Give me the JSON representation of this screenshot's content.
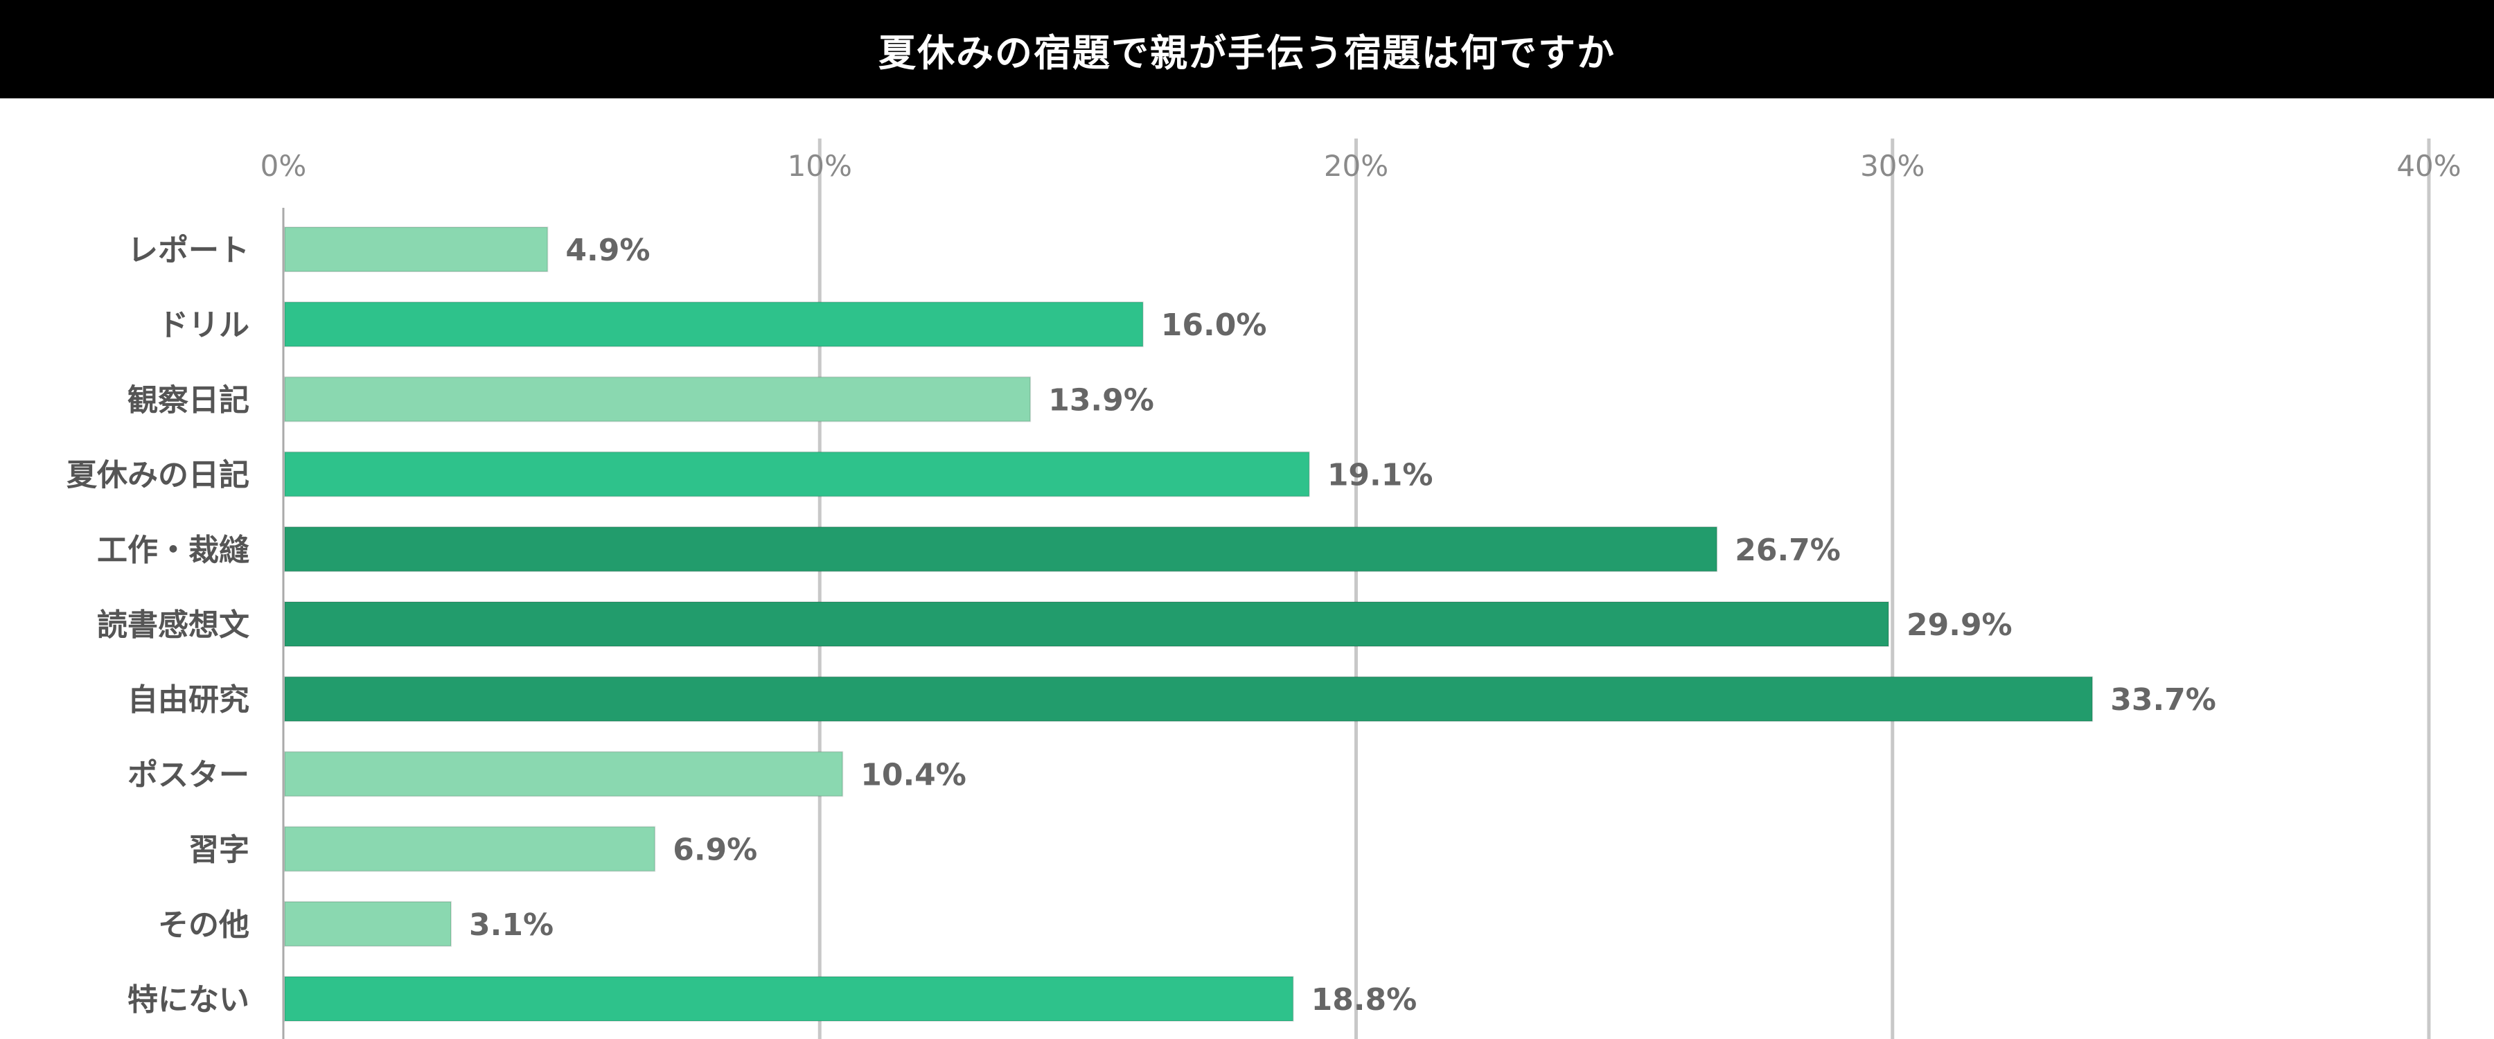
{
  "title": "夏休みの宿題で親が手伝う宿題は何ですか",
  "chart_data": {
    "type": "bar",
    "orientation": "horizontal",
    "title": "夏休みの宿題で親が手伝う宿題は何ですか",
    "xlabel": "",
    "ylabel": "",
    "xlim": [
      0,
      40
    ],
    "x_ticks": [
      "0%",
      "10%",
      "20%",
      "30%",
      "40%"
    ],
    "grid": true,
    "categories": [
      "レポート",
      "ドリル",
      "観察日記",
      "夏休みの日記",
      "工作・裁縫",
      "読書感想文",
      "自由研究",
      "ポスター",
      "習字",
      "その他",
      "特にない"
    ],
    "values": [
      4.9,
      16.0,
      13.9,
      19.1,
      26.7,
      29.9,
      33.7,
      10.4,
      6.9,
      3.1,
      18.8
    ],
    "data_labels": [
      "4.9%",
      "16.0%",
      "13.9%",
      "19.1%",
      "26.7%",
      "29.9%",
      "33.7%",
      "10.4%",
      "6.9%",
      "3.1%",
      "18.8%"
    ],
    "bar_colors": [
      "#8ad8b0",
      "#2ec28b",
      "#8ad8b0",
      "#2ec28b",
      "#229c6c",
      "#229c6c",
      "#229c6c",
      "#8ad8b0",
      "#8ad8b0",
      "#8ad8b0",
      "#2ec28b"
    ]
  }
}
